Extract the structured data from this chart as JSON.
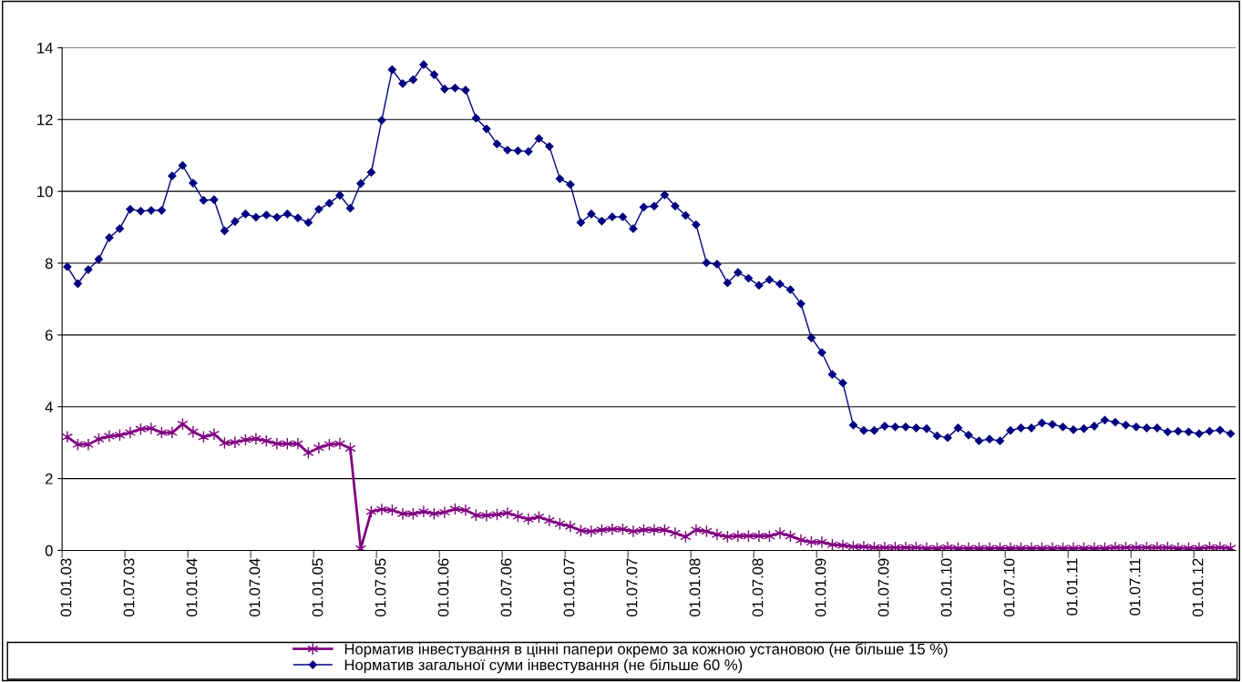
{
  "chart_data": {
    "type": "line",
    "categories": [
      "01.01.03",
      null,
      null,
      null,
      null,
      null,
      "01.07.03",
      null,
      null,
      null,
      null,
      null,
      "01.01.04",
      null,
      null,
      null,
      null,
      null,
      "01.07.04",
      null,
      null,
      null,
      null,
      null,
      "01.01.05",
      null,
      null,
      null,
      null,
      null,
      "01.07.05",
      null,
      null,
      null,
      null,
      null,
      "01.01.06",
      null,
      null,
      null,
      null,
      null,
      "01.07.06",
      null,
      null,
      null,
      null,
      null,
      "01.01.07",
      null,
      null,
      null,
      null,
      null,
      "01.07.07",
      null,
      null,
      null,
      null,
      null,
      "01.01.08",
      null,
      null,
      null,
      null,
      null,
      "01.07.08",
      null,
      null,
      null,
      null,
      null,
      "01.01.09",
      null,
      null,
      null,
      null,
      null,
      "01.07.09",
      null,
      null,
      null,
      null,
      null,
      "01.01.10",
      null,
      null,
      null,
      null,
      null,
      "01.07.10",
      null,
      null,
      null,
      null,
      null,
      "01.01.11",
      null,
      null,
      null,
      null,
      null,
      "01.07.11",
      null,
      null,
      null,
      null,
      null,
      "01.01.12",
      null,
      null,
      null
    ],
    "series": [
      {
        "name": "Норматив інвестування в цінні папери окремо за кожною установою (не більше 15 %)",
        "color": "#800080",
        "marker": "cross",
        "values": [
          3.16,
          2.95,
          2.95,
          3.1,
          3.18,
          3.21,
          3.28,
          3.38,
          3.4,
          3.28,
          3.28,
          3.52,
          3.3,
          3.16,
          3.24,
          2.99,
          3.01,
          3.08,
          3.11,
          3.05,
          2.97,
          2.97,
          2.97,
          2.72,
          2.86,
          2.95,
          2.97,
          2.84,
          0.05,
          1.08,
          1.14,
          1.12,
          1.02,
          1.02,
          1.08,
          1.02,
          1.06,
          1.15,
          1.12,
          0.98,
          0.97,
          1.0,
          1.04,
          0.95,
          0.87,
          0.93,
          0.83,
          0.74,
          0.67,
          0.55,
          0.53,
          0.57,
          0.59,
          0.59,
          0.53,
          0.57,
          0.57,
          0.57,
          0.48,
          0.38,
          0.57,
          0.53,
          0.44,
          0.38,
          0.4,
          0.4,
          0.4,
          0.4,
          0.48,
          0.4,
          0.29,
          0.23,
          0.23,
          0.16,
          0.14,
          0.1,
          0.1,
          0.08,
          0.08,
          0.08,
          0.08,
          0.08,
          0.06,
          0.06,
          0.08,
          0.06,
          0.06,
          0.06,
          0.06,
          0.06,
          0.06,
          0.06,
          0.06,
          0.06,
          0.06,
          0.06,
          0.06,
          0.06,
          0.06,
          0.06,
          0.08,
          0.08,
          0.08,
          0.08,
          0.08,
          0.08,
          0.06,
          0.06,
          0.06,
          0.08,
          0.08,
          0.06
        ]
      },
      {
        "name": "Норматив загальної суми інвестування (не більше 60 %)",
        "color": "#000080",
        "marker": "diamond",
        "values": [
          7.9,
          7.43,
          7.82,
          8.11,
          8.71,
          8.96,
          9.5,
          9.45,
          9.47,
          9.47,
          10.43,
          10.72,
          10.23,
          9.75,
          9.77,
          8.9,
          9.16,
          9.37,
          9.28,
          9.34,
          9.28,
          9.37,
          9.26,
          9.13,
          9.5,
          9.67,
          9.89,
          9.53,
          10.22,
          10.53,
          11.98,
          13.39,
          13.0,
          13.11,
          13.53,
          13.25,
          12.85,
          12.88,
          12.82,
          12.04,
          11.74,
          11.32,
          11.15,
          11.13,
          11.11,
          11.47,
          11.25,
          10.35,
          10.19,
          9.13,
          9.37,
          9.17,
          9.29,
          9.29,
          8.96,
          9.56,
          9.59,
          9.9,
          9.59,
          9.33,
          9.07,
          8.01,
          7.97,
          7.45,
          7.74,
          7.58,
          7.38,
          7.54,
          7.42,
          7.26,
          6.87,
          5.92,
          5.51,
          4.9,
          4.66,
          3.49,
          3.34,
          3.34,
          3.46,
          3.44,
          3.44,
          3.41,
          3.39,
          3.19,
          3.14,
          3.41,
          3.21,
          3.05,
          3.1,
          3.05,
          3.34,
          3.41,
          3.41,
          3.55,
          3.51,
          3.44,
          3.36,
          3.39,
          3.46,
          3.63,
          3.57,
          3.49,
          3.44,
          3.41,
          3.41,
          3.3,
          3.32,
          3.3,
          3.25,
          3.32,
          3.35,
          3.25
        ]
      }
    ],
    "ylim": [
      0,
      14
    ],
    "yticks": [
      0,
      2,
      4,
      6,
      8,
      10,
      12,
      14
    ],
    "grid": "y",
    "legend": "bottom"
  }
}
